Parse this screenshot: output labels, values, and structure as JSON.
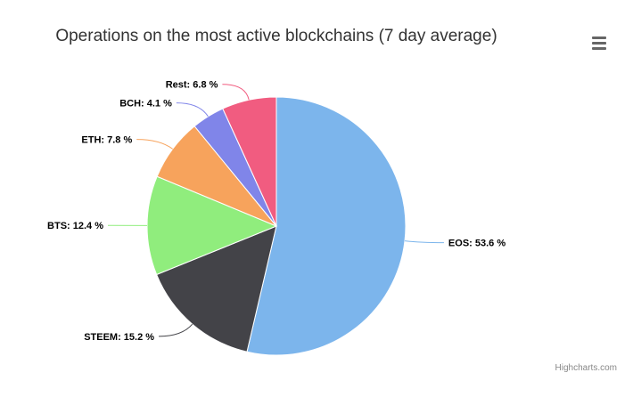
{
  "chart_data": {
    "type": "pie",
    "title": "Operations on the most active blockchains (7 day average)",
    "series": [
      {
        "name": "EOS",
        "value": 53.6,
        "color": "#7cb5ec"
      },
      {
        "name": "STEEM",
        "value": 15.2,
        "color": "#434348"
      },
      {
        "name": "BTS",
        "value": 12.4,
        "color": "#90ed7d"
      },
      {
        "name": "ETH",
        "value": 7.8,
        "color": "#f7a35c"
      },
      {
        "name": "BCH",
        "value": 4.1,
        "color": "#8085e9"
      },
      {
        "name": "Rest",
        "value": 6.8,
        "color": "#f15c80"
      }
    ],
    "data_label_format": "{name}: {value} %",
    "legend": "none"
  },
  "header": {
    "menu_icon": "hamburger-menu-icon"
  },
  "credits": {
    "label": "Highcharts.com"
  }
}
